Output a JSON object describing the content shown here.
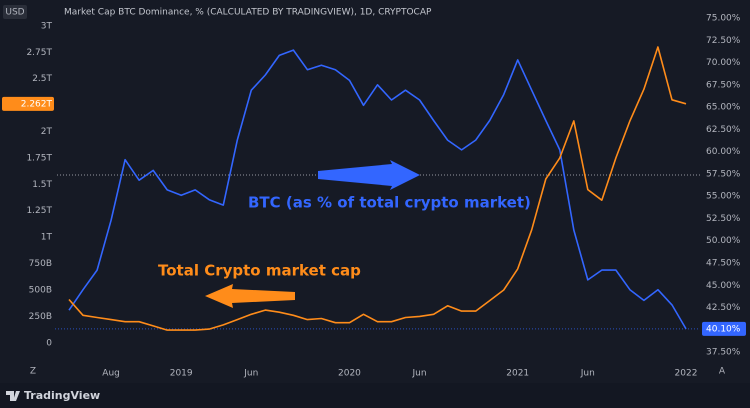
{
  "header": {
    "currency": "USD",
    "title": "Market Cap BTC Dominance, % (CALCULATED BY TRADINGVIEW), 1D, CRYPTOCAP",
    "logo": "TradingView",
    "scale_left": "Z",
    "scale_right": "A"
  },
  "chart_data": {
    "type": "line",
    "x": [
      "2018-05",
      "2018-06",
      "2018-07",
      "2018-08",
      "2018-09",
      "2018-10",
      "2018-11",
      "2018-12",
      "2019-01",
      "2019-02",
      "2019-03",
      "2019-04",
      "2019-05",
      "2019-06",
      "2019-07",
      "2019-08",
      "2019-09",
      "2019-10",
      "2019-11",
      "2019-12",
      "2020-01",
      "2020-02",
      "2020-03",
      "2020-04",
      "2020-05",
      "2020-06",
      "2020-07",
      "2020-08",
      "2020-09",
      "2020-10",
      "2020-11",
      "2020-12",
      "2021-01",
      "2021-02",
      "2021-03",
      "2021-04",
      "2021-05",
      "2021-06",
      "2021-07",
      "2021-08",
      "2021-09",
      "2021-10",
      "2021-11",
      "2021-12",
      "2022-01"
    ],
    "xlim": [
      "2018-04",
      "2022-02"
    ],
    "xticks": [
      {
        "value": "2018-08",
        "label": "Aug"
      },
      {
        "value": "2019-01",
        "label": "2019"
      },
      {
        "value": "2019-06",
        "label": "Jun"
      },
      {
        "value": "2020-01",
        "label": "2020"
      },
      {
        "value": "2020-06",
        "label": "Jun"
      },
      {
        "value": "2021-01",
        "label": "2021"
      },
      {
        "value": "2021-06",
        "label": "Jun"
      },
      {
        "value": "2022-01",
        "label": "2022"
      }
    ],
    "series": [
      {
        "name": "BTC (as % of total crypto market)",
        "color": "#3366ff",
        "axis": "y2",
        "last_value_label": "40.10%",
        "values": [
          42.2,
          44.5,
          46.7,
          52.3,
          59.1,
          56.8,
          57.9,
          55.7,
          55.1,
          55.7,
          54.6,
          54.0,
          61.3,
          66.9,
          68.6,
          70.8,
          71.4,
          69.2,
          69.7,
          69.2,
          68.0,
          65.2,
          67.5,
          65.8,
          66.9,
          65.8,
          63.5,
          61.3,
          60.2,
          61.3,
          63.5,
          66.4,
          70.3,
          66.9,
          63.5,
          60.2,
          51.2,
          45.6,
          46.7,
          46.7,
          44.5,
          43.3,
          44.5,
          42.8,
          40.1
        ]
      },
      {
        "name": "Total Crypto market cap",
        "color": "#ff8c1a",
        "last_value_label": "2.262T",
        "values": [
          410000000000.0,
          260000000000.0,
          240000000000.0,
          220000000000.0,
          200000000000.0,
          200000000000.0,
          160000000000.0,
          120000000000.0,
          120000000000.0,
          120000000000.0,
          130000000000.0,
          170000000000.0,
          220000000000.0,
          270000000000.0,
          310000000000.0,
          290000000000.0,
          260000000000.0,
          220000000000.0,
          230000000000.0,
          190000000000.0,
          190000000000.0,
          270000000000.0,
          200000000000.0,
          200000000000.0,
          240000000000.0,
          250000000000.0,
          270000000000.0,
          350000000000.0,
          300000000000.0,
          300000000000.0,
          400000000000.0,
          500000000000.0,
          700000000000.0,
          1070000000000.0,
          1550000000000.0,
          1750000000000.0,
          2100000000000.0,
          1450000000000.0,
          1350000000000.0,
          1750000000000.0,
          2100000000000.0,
          2400000000000.0,
          2800000000000.0,
          2300000000000.0,
          2262000000000.0
        ]
      }
    ],
    "ylim": [
      -210000000000.0,
      3150000000000.0
    ],
    "yticks": [
      0,
      {
        "value": 250000000000.0,
        "label": "250B"
      },
      {
        "value": 500000000000.0,
        "label": "500B"
      },
      {
        "value": 750000000000.0,
        "label": "750B"
      },
      {
        "value": 1000000000000.0,
        "label": "1T"
      },
      {
        "value": 1250000000000.0,
        "label": "1.25T"
      },
      {
        "value": 1500000000000.0,
        "label": "1.5T"
      },
      {
        "value": 1750000000000.0,
        "label": "1.75T"
      },
      {
        "value": 2000000000000.0,
        "label": "2T"
      },
      {
        "value": 2500000000000.0,
        "label": "2.5T"
      },
      {
        "value": 2750000000000.0,
        "label": "2.75T"
      },
      {
        "value": 3000000000000.0,
        "label": "3T"
      }
    ],
    "y2lim": [
      36.05,
      75.9
    ],
    "y2ticks": [
      {
        "value": 37.5,
        "label": "37.50%"
      },
      {
        "value": 40,
        "label": "40.00%"
      },
      {
        "value": 42.5,
        "label": "42.50%"
      },
      {
        "value": 45,
        "label": "45.00%"
      },
      {
        "value": 47.5,
        "label": "47.50%"
      },
      {
        "value": 50,
        "label": "50.00%"
      },
      {
        "value": 52.5,
        "label": "52.50%"
      },
      {
        "value": 55,
        "label": "55.00%"
      },
      {
        "value": 57.5,
        "label": "57.50%"
      },
      {
        "value": 60,
        "label": "60.00%"
      },
      {
        "value": 62.5,
        "label": "62.50%"
      },
      {
        "value": 65,
        "label": "65.00%"
      },
      {
        "value": 67.5,
        "label": "67.50%"
      },
      {
        "value": 70,
        "label": "70.00%"
      },
      {
        "value": 72.5,
        "label": "72.50%"
      },
      {
        "value": 75,
        "label": "75.00%"
      }
    ],
    "grid": false
  }
}
